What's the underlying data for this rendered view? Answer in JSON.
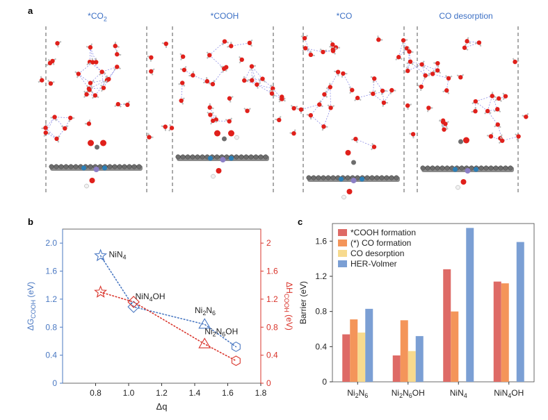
{
  "panel_a": {
    "letter": "a",
    "titles": [
      {
        "main": "*CO",
        "sub": "2",
        "tail": ""
      },
      {
        "main": "*COOH",
        "sub": "",
        "tail": ""
      },
      {
        "main": "*CO",
        "sub": "",
        "tail": ""
      },
      {
        "main": "CO desorption",
        "sub": "",
        "tail": ""
      }
    ]
  },
  "colors": {
    "blue": "#4a78c2",
    "red": "#d9342b",
    "water_o": "#e0201b",
    "water_h": "#e8e8e8",
    "carbon": "#6d6d6d",
    "nitrogen": "#2a7fb8",
    "nickel": "#8c7fc6",
    "hbond": "#8e8ee6",
    "bar_cooh": "#de6a66",
    "bar_co_form": "#f4955a",
    "bar_co_des": "#f7da8e",
    "bar_her": "#7b9fd4"
  },
  "chart_data": [
    {
      "panel": "b",
      "type": "scatter",
      "xlabel": "Δq",
      "ylabel_left": {
        "pre": "ΔG",
        "sub": "COOH",
        "post": " (eV)"
      },
      "ylabel_right": {
        "pre": "ΔH",
        "sub": "COOH",
        "post": " (eV)"
      },
      "xlim": [
        0.6,
        1.8
      ],
      "ylim": [
        0,
        2.2
      ],
      "xticks": [
        "0.8",
        "1.0",
        "1.2",
        "1.4",
        "1.6",
        "1.8"
      ],
      "yticks_left": [
        "0",
        "0.4",
        "0.8",
        "1.2",
        "1.6",
        "2.0"
      ],
      "yticks_right": [
        "0",
        "0.4",
        "0.8",
        "1.2",
        "1.6",
        "2"
      ],
      "series": [
        {
          "name": "ΔG_COOH",
          "axis": "left",
          "color": "blue",
          "points": [
            {
              "x": 0.83,
              "y": 1.82,
              "marker": "star"
            },
            {
              "x": 1.03,
              "y": 1.09,
              "marker": "diamond"
            },
            {
              "x": 1.46,
              "y": 0.84,
              "marker": "triangle"
            },
            {
              "x": 1.65,
              "y": 0.52,
              "marker": "hexagon"
            }
          ]
        },
        {
          "name": "ΔH_COOH",
          "axis": "right",
          "color": "red",
          "points": [
            {
              "x": 0.83,
              "y": 1.3,
              "marker": "star"
            },
            {
              "x": 1.03,
              "y": 1.16,
              "marker": "diamond"
            },
            {
              "x": 1.46,
              "y": 0.56,
              "marker": "triangle"
            },
            {
              "x": 1.65,
              "y": 0.32,
              "marker": "hexagon"
            }
          ]
        }
      ],
      "annotations": [
        {
          "main": "NiN",
          "sub": "4",
          "tail": "",
          "x": 0.88,
          "y": 1.8
        },
        {
          "main": "NiN",
          "sub": "4",
          "tail": "OH",
          "x": 1.04,
          "y": 1.2
        },
        {
          "main": "Ni",
          "sub": "2",
          "tail": "N",
          "sub2": "6",
          "x": 1.4,
          "y": 1.0
        },
        {
          "main": "Ni",
          "sub": "2",
          "tail": "N",
          "sub2": "6",
          "tail2": "OH",
          "x": 1.46,
          "y": 0.7
        }
      ]
    },
    {
      "panel": "c",
      "type": "bar",
      "ylabel": "Barrier (eV)",
      "ylim": [
        0,
        1.8
      ],
      "yticks": [
        "0",
        "0.4",
        "0.8",
        "1.2",
        "1.6"
      ],
      "categories": [
        {
          "main": "Ni",
          "sub": "2",
          "tail": "N",
          "sub2": "6",
          "tail2": ""
        },
        {
          "main": "Ni",
          "sub": "2",
          "tail": "N",
          "sub2": "6",
          "tail2": "OH"
        },
        {
          "main": "NiN",
          "sub": "4",
          "tail": "",
          "sub2": "",
          "tail2": ""
        },
        {
          "main": "NiN",
          "sub": "4",
          "tail": "OH",
          "sub2": "",
          "tail2": ""
        }
      ],
      "series": [
        {
          "name": "*COOH formation",
          "color": "bar_cooh",
          "values": [
            0.54,
            0.3,
            1.28,
            1.14
          ]
        },
        {
          "name": "(*) CO formation",
          "color": "bar_co_form",
          "values": [
            0.71,
            0.7,
            0.8,
            1.12
          ]
        },
        {
          "name": "CO desorption",
          "color": "bar_co_des",
          "values": [
            0.56,
            0.35,
            null,
            null
          ]
        },
        {
          "name": "HER-Volmer",
          "color": "bar_her",
          "values": [
            0.83,
            0.52,
            1.75,
            1.59
          ]
        }
      ],
      "legend_location": "top-left"
    }
  ],
  "panel_b": {
    "letter": "b"
  },
  "panel_c": {
    "letter": "c"
  }
}
